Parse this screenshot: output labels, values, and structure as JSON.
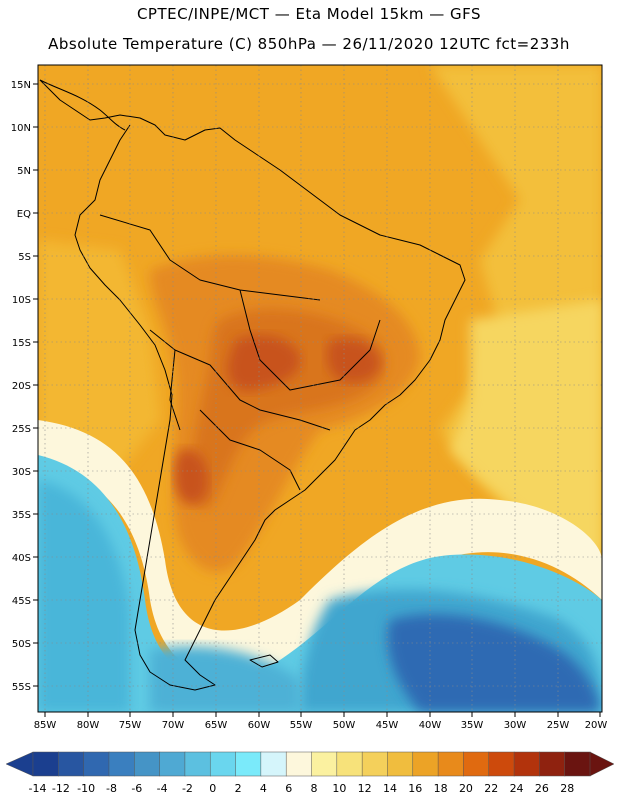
{
  "header": {
    "line1": "CPTEC/INPE/MCT —  Eta Model 15km — GFS",
    "line2": "Absolute Temperature (C) 850hPa — 26/11/2020 12UTC fct=233h"
  },
  "map": {
    "lat_labels": [
      "15N",
      "10N",
      "5N",
      "EQ",
      "5S",
      "10S",
      "15S",
      "20S",
      "25S",
      "30S",
      "35S",
      "40S",
      "45S",
      "50S",
      "55S"
    ],
    "lon_labels": [
      "85W",
      "80W",
      "75W",
      "70W",
      "65W",
      "60W",
      "55W",
      "50W",
      "45W",
      "40W",
      "35W",
      "30W",
      "25W",
      "20W"
    ]
  },
  "legend": {
    "labels": [
      "-14",
      "-12",
      "-10",
      "-8",
      "-6",
      "-4",
      "-2",
      "0",
      "2",
      "4",
      "6",
      "8",
      "10",
      "12",
      "14",
      "16",
      "18",
      "20",
      "22",
      "24",
      "26",
      "28"
    ],
    "colors": [
      "#1b3f8f",
      "#2856a1",
      "#3068b0",
      "#3a7fbf",
      "#4594c6",
      "#4fa9d3",
      "#5cc0e0",
      "#6ad6ee",
      "#7aeafa",
      "#d5f5fb",
      "#fdf7dc",
      "#fbf1a0",
      "#f7e27a",
      "#f4d05b",
      "#f0bd3e",
      "#eca326",
      "#e88a1b",
      "#e06a10",
      "#cd4a0c",
      "#b2330c",
      "#8f220f",
      "#6a1410"
    ]
  },
  "colors": {
    "warm_bg": "#f0a724",
    "land_hot": "#d9741d",
    "land_hottest": "#c8531a",
    "ocean_cold": "#3fa6cf",
    "ocean_coldest": "#2f6ab3"
  }
}
